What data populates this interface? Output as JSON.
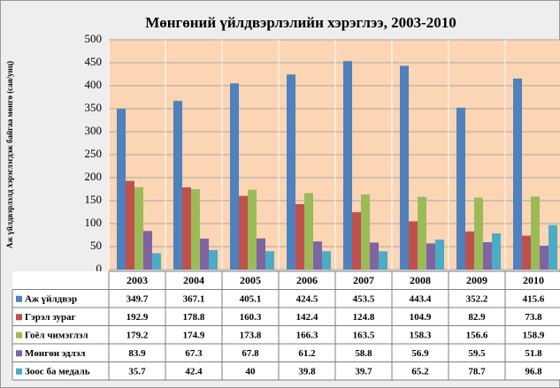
{
  "chart_data": {
    "type": "bar",
    "title": "Мөнгөний үйлдвэрлэлийн хэрэглээ, 2003-2010",
    "y_label": "Аж үйлдвэрлэлд хэрэглэгдэж байгаа мөнгө (сая/унц)",
    "categories": [
      "2003",
      "2004",
      "2005",
      "2006",
      "2007",
      "2008",
      "2009",
      "2010"
    ],
    "series": [
      {
        "name": "Аж үйлдвэр",
        "color": "#4f81bd",
        "values": [
          349.7,
          367.1,
          405.1,
          424.5,
          453.5,
          443.4,
          352.2,
          415.6
        ]
      },
      {
        "name": "Гэрэл зураг",
        "color": "#c0504d",
        "values": [
          192.9,
          178.8,
          160.3,
          142.4,
          124.8,
          104.9,
          82.9,
          73.8
        ]
      },
      {
        "name": "Гоёл чимэглэл",
        "color": "#9bbb59",
        "values": [
          179.2,
          174.9,
          173.8,
          166.3,
          163.5,
          158.3,
          156.6,
          158.9
        ]
      },
      {
        "name": "Мөнгөн эдлэл",
        "color": "#8064a2",
        "values": [
          83.9,
          67.3,
          67.8,
          61.2,
          58.8,
          56.9,
          59.5,
          51.8
        ]
      },
      {
        "name": "Зоос ба медаль",
        "color": "#4bacc6",
        "values": [
          35.7,
          42.4,
          40,
          39.8,
          39.7,
          65.2,
          78.7,
          96.8
        ]
      }
    ],
    "ylim": [
      0,
      500
    ],
    "yticks": [
      0,
      50,
      100,
      150,
      200,
      250,
      300,
      350,
      400,
      450,
      500
    ],
    "grid": true
  }
}
